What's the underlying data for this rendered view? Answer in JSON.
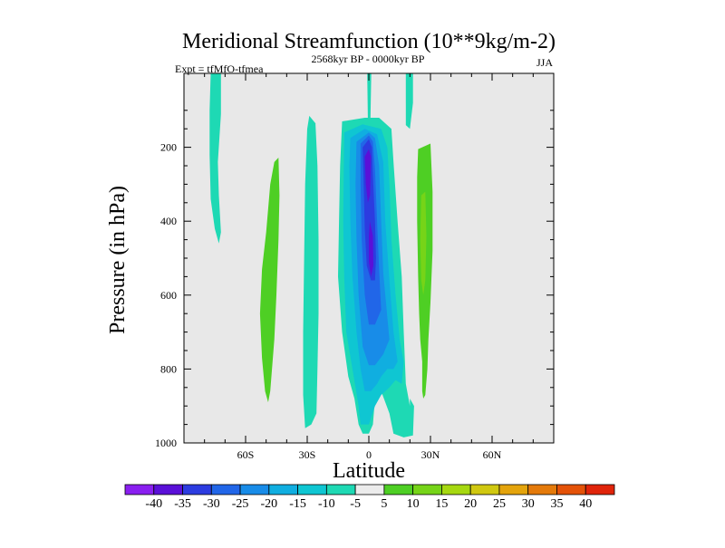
{
  "chart_data": {
    "type": "heatmap",
    "title": "Meridional Streamfunction (10**9kg/m-2)",
    "left_string": "Expt = tfMfO-tfmea",
    "center_string": "2568kyr BP - 0000kyr BP",
    "right_string": "JJA",
    "xlabel": "Latitude",
    "ylabel": "Pressure (in hPa)",
    "x_range": [
      -90,
      90
    ],
    "y_range": [
      0,
      1000
    ],
    "x_ticks": [
      {
        "value": -60,
        "label": "60S"
      },
      {
        "value": -30,
        "label": "30S"
      },
      {
        "value": 0,
        "label": "0"
      },
      {
        "value": 30,
        "label": "30N"
      },
      {
        "value": 60,
        "label": "60N"
      }
    ],
    "y_ticks": [
      {
        "value": 200,
        "label": "200"
      },
      {
        "value": 400,
        "label": "400"
      },
      {
        "value": 600,
        "label": "600"
      },
      {
        "value": 800,
        "label": "800"
      },
      {
        "value": 1000,
        "label": "1000"
      }
    ],
    "background_color": "#e8e8e8",
    "levels": [
      -40,
      -35,
      -30,
      -25,
      -20,
      -15,
      -10,
      -5,
      5,
      10,
      15,
      20,
      25,
      30,
      35,
      40
    ],
    "level_labels": [
      "-40",
      "-35",
      "-30",
      "-25",
      "-20",
      "-15",
      "-10",
      "-5",
      "5",
      "10",
      "15",
      "20",
      "25",
      "30",
      "35",
      "40"
    ],
    "colors": [
      "#8a1ff0",
      "#5a10d8",
      "#2c3ce0",
      "#2166e8",
      "#188ce8",
      "#10aee0",
      "#0fc6d2",
      "#1ed9b4",
      "#ececec",
      "#4ecf24",
      "#76d418",
      "#a6d810",
      "#d0c810",
      "#e4a40c",
      "#e47a0a",
      "#e45208",
      "#e0240a"
    ],
    "contour_regions": [
      {
        "name": "band-70S-upper",
        "value": -7,
        "points": [
          [
            -77,
            0
          ],
          [
            -72,
            0
          ],
          [
            -72,
            110
          ],
          [
            -73.5,
            240
          ],
          [
            -73,
            330
          ],
          [
            -72,
            430
          ],
          [
            -73,
            460
          ],
          [
            -75,
            420
          ],
          [
            -77,
            340
          ],
          [
            -77.5,
            220
          ],
          [
            -77.5,
            100
          ]
        ]
      },
      {
        "name": "band-45S-positive",
        "value": 7,
        "points": [
          [
            -46,
            240
          ],
          [
            -44,
            228
          ],
          [
            -43.5,
            330
          ],
          [
            -44,
            450
          ],
          [
            -45,
            600
          ],
          [
            -46,
            720
          ],
          [
            -48,
            860
          ],
          [
            -49,
            890
          ],
          [
            -50.5,
            860
          ],
          [
            -52,
            770
          ],
          [
            -53,
            650
          ],
          [
            -52,
            530
          ],
          [
            -50,
            430
          ],
          [
            -48,
            300
          ]
        ]
      },
      {
        "name": "band-30S",
        "value": -7,
        "points": [
          [
            -29,
            115
          ],
          [
            -26,
            135
          ],
          [
            -25,
            250
          ],
          [
            -24.5,
            450
          ],
          [
            -24.5,
            650
          ],
          [
            -25,
            800
          ],
          [
            -25.5,
            920
          ],
          [
            -28,
            950
          ],
          [
            -31,
            960
          ],
          [
            -32,
            870
          ],
          [
            -32,
            700
          ],
          [
            -31.5,
            500
          ],
          [
            -31,
            300
          ],
          [
            -30,
            150
          ]
        ]
      },
      {
        "name": "main-outer",
        "value": -7,
        "points": [
          [
            -13,
            130
          ],
          [
            -2,
            120
          ],
          [
            5,
            120
          ],
          [
            11,
            150
          ],
          [
            12,
            240
          ],
          [
            14,
            400
          ],
          [
            16,
            550
          ],
          [
            17,
            700
          ],
          [
            18,
            840
          ],
          [
            20,
            900
          ],
          [
            20,
            880
          ],
          [
            22,
            900
          ],
          [
            21.5,
            980
          ],
          [
            17,
            985
          ],
          [
            12,
            975
          ],
          [
            10,
            920
          ],
          [
            6,
            860
          ],
          [
            3,
            880
          ],
          [
            2,
            950
          ],
          [
            0,
            975
          ],
          [
            -3,
            975
          ],
          [
            -5,
            950
          ],
          [
            -7,
            880
          ],
          [
            -10,
            820
          ],
          [
            -13,
            700
          ],
          [
            -15,
            550
          ],
          [
            -14.5,
            400
          ],
          [
            -14,
            250
          ]
        ]
      },
      {
        "name": "main-l10",
        "value": -12,
        "points": [
          [
            -12,
            160
          ],
          [
            -3,
            138
          ],
          [
            6,
            150
          ],
          [
            9,
            200
          ],
          [
            10,
            300
          ],
          [
            11,
            450
          ],
          [
            13,
            600
          ],
          [
            15,
            720
          ],
          [
            17,
            780
          ],
          [
            16,
            840
          ],
          [
            13,
            830
          ],
          [
            10,
            850
          ],
          [
            6,
            870
          ],
          [
            3,
            900
          ],
          [
            0,
            950
          ],
          [
            -4,
            950
          ],
          [
            -5,
            900
          ],
          [
            -8,
            800
          ],
          [
            -11,
            700
          ],
          [
            -12,
            550
          ],
          [
            -12.5,
            400
          ]
        ]
      },
      {
        "name": "main-l15",
        "value": -17,
        "points": [
          [
            -9,
            175
          ],
          [
            -2,
            150
          ],
          [
            4,
            165
          ],
          [
            7,
            240
          ],
          [
            8,
            400
          ],
          [
            10,
            560
          ],
          [
            12,
            700
          ],
          [
            14,
            780
          ],
          [
            12,
            800
          ],
          [
            9,
            800
          ],
          [
            6,
            820
          ],
          [
            4,
            840
          ],
          [
            1,
            860
          ],
          [
            -2,
            860
          ],
          [
            -4,
            800
          ],
          [
            -6,
            700
          ],
          [
            -8,
            550
          ],
          [
            -9,
            400
          ],
          [
            -9.5,
            250
          ]
        ]
      },
      {
        "name": "main-l20",
        "value": -22,
        "points": [
          [
            -6,
            185
          ],
          [
            0,
            160
          ],
          [
            3,
            175
          ],
          [
            5,
            250
          ],
          [
            6,
            400
          ],
          [
            7,
            540
          ],
          [
            9,
            660
          ],
          [
            10,
            720
          ],
          [
            7,
            760
          ],
          [
            3,
            790
          ],
          [
            0,
            790
          ],
          [
            -3,
            740
          ],
          [
            -5,
            600
          ],
          [
            -6,
            450
          ],
          [
            -6.5,
            300
          ]
        ]
      },
      {
        "name": "main-l25",
        "value": -27,
        "points": [
          [
            -4,
            190
          ],
          [
            0,
            168
          ],
          [
            2,
            185
          ],
          [
            3,
            260
          ],
          [
            4,
            400
          ],
          [
            5,
            530
          ],
          [
            6,
            640
          ],
          [
            3,
            680
          ],
          [
            0,
            680
          ],
          [
            -2,
            600
          ],
          [
            -3.5,
            450
          ],
          [
            -4,
            300
          ]
        ]
      },
      {
        "name": "main-l30",
        "value": -32,
        "points": [
          [
            -3,
            200
          ],
          [
            0,
            178
          ],
          [
            1.5,
            200
          ],
          [
            2,
            280
          ],
          [
            3,
            400
          ],
          [
            3.5,
            500
          ],
          [
            3,
            560
          ],
          [
            1,
            560
          ],
          [
            -1,
            520
          ],
          [
            -2,
            420
          ],
          [
            -2.5,
            300
          ]
        ]
      },
      {
        "name": "main-l35-top",
        "value": -37,
        "points": [
          [
            -2,
            225
          ],
          [
            0,
            205
          ],
          [
            1,
            225
          ],
          [
            0.6,
            330
          ],
          [
            -0.5,
            350
          ],
          [
            -1.5,
            300
          ]
        ]
      },
      {
        "name": "main-l35-mid",
        "value": -37,
        "points": [
          [
            0.5,
            400
          ],
          [
            2,
            440
          ],
          [
            2.2,
            520
          ],
          [
            1,
            550
          ],
          [
            0,
            510
          ],
          [
            0,
            440
          ]
        ]
      },
      {
        "name": "band-20N",
        "value": -7,
        "points": [
          [
            18,
            0
          ],
          [
            21.5,
            0
          ],
          [
            21.5,
            80
          ],
          [
            20,
            150
          ],
          [
            18,
            140
          ],
          [
            18,
            60
          ]
        ]
      },
      {
        "name": "band-0-top",
        "value": -7,
        "points": [
          [
            -0.8,
            0
          ],
          [
            1.2,
            0
          ],
          [
            0.8,
            120
          ],
          [
            -0.5,
            120
          ]
        ]
      },
      {
        "name": "band-28N-positive",
        "value": 7,
        "points": [
          [
            24,
            205
          ],
          [
            30,
            190
          ],
          [
            31,
            320
          ],
          [
            31,
            480
          ],
          [
            30,
            620
          ],
          [
            29,
            720
          ],
          [
            28.5,
            800
          ],
          [
            27.5,
            870
          ],
          [
            26.5,
            880
          ],
          [
            26,
            860
          ],
          [
            26,
            780
          ],
          [
            25,
            720
          ],
          [
            24.5,
            650
          ],
          [
            24,
            550
          ],
          [
            23.5,
            400
          ],
          [
            23.5,
            280
          ]
        ]
      },
      {
        "name": "band-28N-l10",
        "value": 12,
        "points": [
          [
            25.5,
            330
          ],
          [
            27.5,
            320
          ],
          [
            28,
            440
          ],
          [
            27.5,
            560
          ],
          [
            26.5,
            600
          ],
          [
            25.5,
            560
          ],
          [
            25,
            450
          ]
        ]
      }
    ]
  }
}
